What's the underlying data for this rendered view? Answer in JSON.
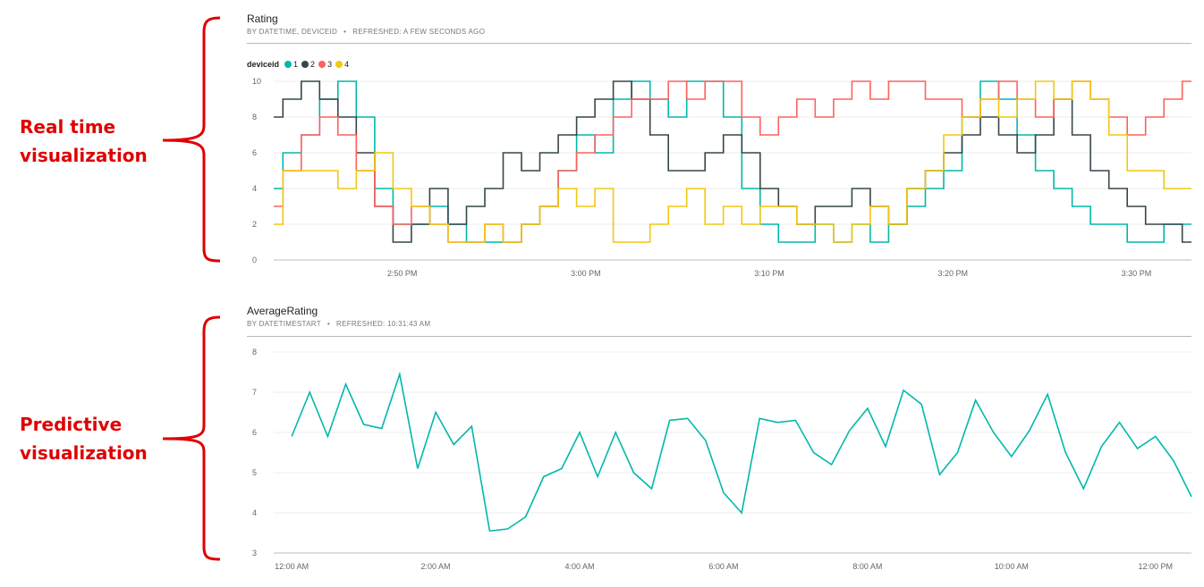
{
  "annotations": {
    "realtime": [
      "Real time",
      "visualization"
    ],
    "predictive": [
      "Predictive",
      "visualization"
    ],
    "color": "#e00000"
  },
  "tiles": [
    {
      "title": "Rating",
      "subtitle": "BY DATETIME, DEVICEID",
      "refreshed": "REFRESHED: A FEW SECONDS AGO",
      "legend_title": "deviceid"
    },
    {
      "title": "AverageRating",
      "subtitle": "BY DATETIMESTART",
      "refreshed": "REFRESHED: 10:31:43 AM"
    }
  ],
  "chart_data": [
    {
      "type": "line",
      "title": "Rating",
      "xlabel": "",
      "ylabel": "",
      "ylim": [
        0,
        10
      ],
      "yticks": [
        0,
        2,
        4,
        6,
        8,
        10
      ],
      "x_ticks": [
        "2:50 PM",
        "3:00 PM",
        "3:10 PM",
        "3:20 PM",
        "3:30 PM"
      ],
      "x_unit": "minutes from 2:50 PM",
      "xlim": [
        -7,
        43
      ],
      "x_tick_values": [
        0,
        10,
        20,
        30,
        40
      ],
      "grid": true,
      "legend": "top-left",
      "series": [
        {
          "name": "1",
          "color": "#01b8aa",
          "x": [
            -7,
            -6,
            -5,
            -4,
            -3,
            -2,
            -1,
            0,
            1,
            2,
            3,
            4,
            5,
            6,
            7,
            8,
            9,
            10,
            11,
            12,
            13,
            14,
            15,
            16,
            17,
            18,
            19,
            20,
            21,
            22,
            23,
            24,
            25,
            26,
            27,
            28,
            29,
            30,
            31,
            32,
            33,
            34,
            35,
            36,
            37,
            38,
            39,
            40,
            41,
            42,
            43
          ],
          "values": [
            4,
            6,
            7,
            9,
            10,
            8,
            4,
            2,
            2,
            3,
            2,
            1,
            1,
            1,
            2,
            3,
            5,
            7,
            6,
            9,
            10,
            9,
            8,
            10,
            10,
            8,
            4,
            2,
            1,
            1,
            2,
            1,
            2,
            1,
            2,
            3,
            4,
            5,
            8,
            10,
            9,
            7,
            5,
            4,
            3,
            2,
            2,
            1,
            1,
            2,
            2
          ]
        },
        {
          "name": "2",
          "color": "#374649",
          "x": [
            -7,
            -6,
            -5,
            -4,
            -3,
            -2,
            -1,
            0,
            1,
            2,
            3,
            4,
            5,
            6,
            7,
            8,
            9,
            10,
            11,
            12,
            13,
            14,
            15,
            16,
            17,
            18,
            19,
            20,
            21,
            22,
            23,
            24,
            25,
            26,
            27,
            28,
            29,
            30,
            31,
            32,
            33,
            34,
            35,
            36,
            37,
            38,
            39,
            40,
            41,
            42,
            43
          ],
          "values": [
            8,
            9,
            10,
            9,
            8,
            6,
            3,
            1,
            2,
            4,
            2,
            3,
            4,
            6,
            5,
            6,
            7,
            8,
            9,
            10,
            9,
            7,
            5,
            5,
            6,
            7,
            6,
            4,
            3,
            2,
            3,
            3,
            4,
            3,
            2,
            4,
            5,
            6,
            7,
            8,
            7,
            6,
            7,
            9,
            7,
            5,
            4,
            3,
            2,
            2,
            1
          ]
        },
        {
          "name": "3",
          "color": "#fd625e",
          "x": [
            -7,
            -6,
            -5,
            -4,
            -3,
            -2,
            -1,
            0,
            1,
            2,
            3,
            4,
            5,
            6,
            7,
            8,
            9,
            10,
            11,
            12,
            13,
            14,
            15,
            16,
            17,
            18,
            19,
            20,
            21,
            22,
            23,
            24,
            25,
            26,
            27,
            28,
            29,
            30,
            31,
            32,
            33,
            34,
            35,
            36,
            37,
            38,
            39,
            40,
            41,
            42,
            43
          ],
          "values": [
            3,
            5,
            7,
            8,
            7,
            5,
            3,
            2,
            3,
            2,
            1,
            1,
            2,
            1,
            2,
            3,
            5,
            6,
            7,
            8,
            9,
            9,
            10,
            9,
            10,
            10,
            8,
            7,
            8,
            9,
            8,
            9,
            10,
            9,
            10,
            10,
            9,
            9,
            8,
            9,
            10,
            9,
            8,
            9,
            10,
            9,
            8,
            7,
            8,
            9,
            10
          ]
        },
        {
          "name": "4",
          "color": "#f2c80f",
          "x": [
            -7,
            -6,
            -5,
            -4,
            -3,
            -2,
            -1,
            0,
            1,
            2,
            3,
            4,
            5,
            6,
            7,
            8,
            9,
            10,
            11,
            12,
            13,
            14,
            15,
            16,
            17,
            18,
            19,
            20,
            21,
            22,
            23,
            24,
            25,
            26,
            27,
            28,
            29,
            30,
            31,
            32,
            33,
            34,
            35,
            36,
            37,
            38,
            39,
            40,
            41,
            42,
            43
          ],
          "values": [
            2,
            5,
            5,
            5,
            4,
            5,
            6,
            4,
            3,
            2,
            1,
            1,
            2,
            1,
            2,
            3,
            4,
            3,
            4,
            1,
            1,
            2,
            3,
            4,
            2,
            3,
            2,
            3,
            3,
            2,
            2,
            1,
            2,
            3,
            2,
            4,
            5,
            7,
            8,
            9,
            8,
            9,
            10,
            9,
            10,
            9,
            7,
            5,
            5,
            4,
            4
          ]
        }
      ]
    },
    {
      "type": "line",
      "title": "AverageRating",
      "xlabel": "",
      "ylabel": "",
      "ylim": [
        3,
        8
      ],
      "yticks": [
        3,
        4,
        5,
        6,
        7,
        8
      ],
      "x_ticks": [
        "12:00 AM",
        "2:00 AM",
        "4:00 AM",
        "6:00 AM",
        "8:00 AM",
        "10:00 AM",
        "12:00 PM"
      ],
      "x_unit": "hours from 12:00 AM",
      "xlim": [
        -0.25,
        12.5
      ],
      "x_tick_values": [
        0,
        2,
        4,
        6,
        8,
        10,
        12
      ],
      "grid": true,
      "series": [
        {
          "color": "#01b8aa",
          "x": [
            0,
            0.25,
            0.5,
            0.75,
            1,
            1.25,
            1.5,
            1.75,
            2,
            2.25,
            2.5,
            2.75,
            3,
            3.25,
            3.5,
            3.75,
            4,
            4.25,
            4.5,
            4.75,
            5,
            5.25,
            5.5,
            5.75,
            6,
            6.25,
            6.5,
            6.75,
            7,
            7.25,
            7.5,
            7.75,
            8,
            8.25,
            8.5,
            8.75,
            9,
            9.25,
            9.5,
            9.75,
            10,
            10.25,
            10.5,
            10.75,
            11,
            11.25,
            11.5,
            11.75,
            12,
            12.25,
            12.5
          ],
          "values": [
            5.9,
            7.0,
            5.9,
            7.2,
            6.2,
            6.1,
            7.45,
            5.1,
            6.5,
            5.7,
            6.15,
            3.55,
            3.6,
            3.9,
            4.9,
            5.1,
            6.0,
            4.9,
            6.0,
            5.0,
            4.6,
            6.3,
            6.35,
            5.8,
            4.5,
            4.0,
            6.35,
            6.25,
            6.3,
            5.5,
            5.2,
            6.05,
            6.6,
            5.65,
            7.05,
            6.7,
            4.95,
            5.5,
            6.8,
            6.0,
            5.4,
            6.05,
            6.95,
            5.5,
            4.6,
            5.65,
            6.25,
            5.6,
            5.9,
            5.3,
            4.4
          ]
        }
      ]
    }
  ]
}
